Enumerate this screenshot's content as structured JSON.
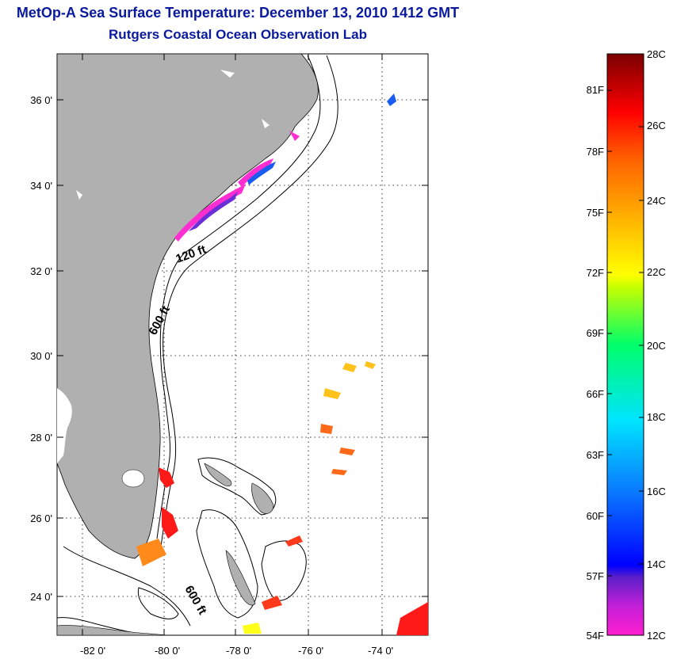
{
  "header": {
    "title": "MetOp-A Sea Surface Temperature:  December 13, 2010 1412 GMT",
    "subtitle": "Rutgers Coastal Ocean Observation Lab"
  },
  "map": {
    "lat_labels": [
      "36 0'",
      "34 0'",
      "32 0'",
      "30 0'",
      "28 0'",
      "26 0'",
      "24 0'"
    ],
    "lon_labels": [
      "-82 0'",
      "-80 0'",
      "-78 0'",
      "-76 0'",
      "-74 0'"
    ],
    "contours": {
      "shelf": "120 ft",
      "slope_north": "600 ft",
      "slope_south": "600 ft"
    }
  },
  "colorbar": {
    "celsius": [
      "28C",
      "26C",
      "24C",
      "22C",
      "20C",
      "18C",
      "16C",
      "14C",
      "12C"
    ],
    "fahrenheit": [
      "81F",
      "78F",
      "75F",
      "72F",
      "69F",
      "66F",
      "63F",
      "60F",
      "57F",
      "54F"
    ],
    "range_c": [
      12,
      28
    ],
    "colors": [
      "#ff1fd0",
      "#7a1fc8",
      "#0000ff",
      "#0a7cff",
      "#00e5ff",
      "#00ff6a",
      "#c8ff00",
      "#ffff00",
      "#ffb000",
      "#ff6000",
      "#ff0000",
      "#7a0000"
    ]
  }
}
